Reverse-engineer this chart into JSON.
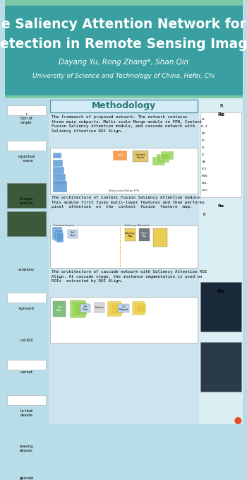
{
  "title_line1": "e Saliency Attention Network for",
  "title_line2": "etection in Remote Sensing Imag",
  "authors": "Dayang Yu, Rong Zhang*, Shan Qin",
  "affiliation": "University of Science and Technology of China, Hefei, Chi",
  "header_bg": "#3a9fa0",
  "header_stripe_top": "#7bc8a4",
  "body_bg": "#b8dce8",
  "methodology_title": "Methodology",
  "methodology_title_color": "#2a7a7a",
  "methodology_box_bg": "#daeef3",
  "text1": "The framework of proposed network. The network contains\nthree main subparts: Multi-scale Merge module in FPN, Context\nFusion Saliency Attention module, and cascade network with\nSaliency Attention ROI Align.",
  "text2": "The architecture of Context Fusion Saliency Attention module.\nThis module first fuses multi-layer features and then performs\npixel  attention  on  the  context  fusion  feature  map.",
  "text3": "The architecture of cascade network with Saliency Attention ROI\nAlign. At cascade stage, the instance segmentation is used on\nROIs  extracted by ROI Align.",
  "left_panel_bg": "#b8dce8",
  "right_panel_bg": "#daeef3",
  "diagram_bg": "#ffffff",
  "blue_block_color": "#5b9bd5",
  "green_block_color": "#92d050",
  "orange_block_color": "#f79646",
  "yellow_block_color": "#f5d000",
  "teal_block_color": "#00b0a0",
  "arrow_color": "#404040"
}
